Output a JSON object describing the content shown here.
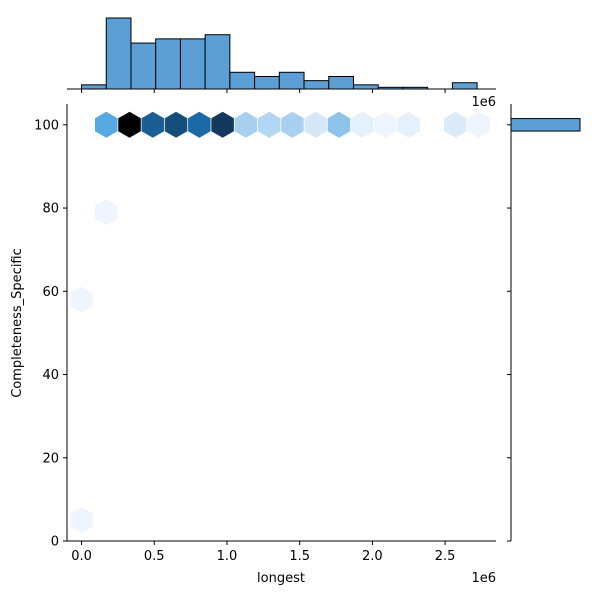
{
  "chart_data": {
    "type": "hexbin-jointplot",
    "xlabel": "longest",
    "ylabel": "Completeness_Specific",
    "x_offset_label": "1e6",
    "x_ticks": [
      0.0,
      0.5,
      1.0,
      1.5,
      2.0,
      2.5
    ],
    "x_tick_labels": [
      "0.0",
      "0.5",
      "1.0",
      "1.5",
      "2.0",
      "2.5"
    ],
    "y_ticks": [
      0,
      20,
      40,
      60,
      80,
      100
    ],
    "y_tick_labels": [
      "0",
      "20",
      "40",
      "60",
      "80",
      "100"
    ],
    "xlim": [
      -0.1,
      2.85
    ],
    "ylim": [
      0,
      105
    ],
    "hexbins": [
      {
        "x": 0.17,
        "y": 100,
        "color": "#56a9e3"
      },
      {
        "x": 0.33,
        "y": 100,
        "color": "#000000"
      },
      {
        "x": 0.49,
        "y": 100,
        "color": "#1b5e94"
      },
      {
        "x": 0.65,
        "y": 100,
        "color": "#164e7b"
      },
      {
        "x": 0.81,
        "y": 100,
        "color": "#1d69a6"
      },
      {
        "x": 0.97,
        "y": 100,
        "color": "#133a5e"
      },
      {
        "x": 1.13,
        "y": 100,
        "color": "#a6cff0"
      },
      {
        "x": 1.29,
        "y": 100,
        "color": "#b3d6f2"
      },
      {
        "x": 1.45,
        "y": 100,
        "color": "#a9d0f0"
      },
      {
        "x": 1.61,
        "y": 100,
        "color": "#d6e8f7"
      },
      {
        "x": 1.77,
        "y": 100,
        "color": "#8ec3ec"
      },
      {
        "x": 1.93,
        "y": 100,
        "color": "#e4f0fa"
      },
      {
        "x": 2.09,
        "y": 100,
        "color": "#eef5fc"
      },
      {
        "x": 2.25,
        "y": 100,
        "color": "#e4f0fa"
      },
      {
        "x": 2.57,
        "y": 100,
        "color": "#dcebf8"
      },
      {
        "x": 2.73,
        "y": 100,
        "color": "#eef5fc"
      },
      {
        "x": 0.17,
        "y": 79,
        "color": "#eef5fc"
      },
      {
        "x": 0.0,
        "y": 58,
        "color": "#eef5fc"
      },
      {
        "x": 0.0,
        "y": 5,
        "color": "#eef5fc"
      }
    ],
    "x_hist": {
      "bin_edges": [
        0.0,
        0.17,
        0.34,
        0.51,
        0.68,
        0.85,
        1.02,
        1.19,
        1.36,
        1.53,
        1.7,
        1.87,
        2.04,
        2.21,
        2.38,
        2.55,
        2.72
      ],
      "counts": [
        1,
        17,
        11,
        12,
        12,
        13,
        4,
        3,
        4,
        2,
        3,
        1,
        0.4,
        0.4,
        0,
        1.5
      ],
      "color": "#5b9fd4"
    },
    "y_hist": {
      "bins": [
        {
          "y0": 98.5,
          "y1": 101.5,
          "count": 1
        }
      ],
      "color": "#5b9fd4"
    }
  }
}
